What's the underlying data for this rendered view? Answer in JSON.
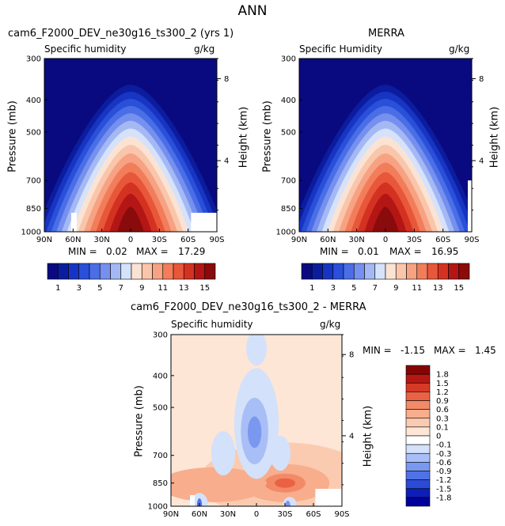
{
  "title": "ANN",
  "colors": {
    "model_obs_scale": [
      "#0a0a80",
      "#0b1d9e",
      "#1735c2",
      "#2a4fd8",
      "#4a6ee6",
      "#7590ee",
      "#a4b9f4",
      "#d6e2fa",
      "#fbe3d4",
      "#f9c6ab",
      "#f6a283",
      "#f27d5b",
      "#e8573a",
      "#d43221",
      "#b41515",
      "#8a0b0b"
    ],
    "diff_scale": [
      "#00009a",
      "#0d1fb8",
      "#2b4ad6",
      "#4f73e6",
      "#7a98ef",
      "#a8bef6",
      "#d3e1fb",
      "#ffffff",
      "#fde6d6",
      "#fbcbb1",
      "#f8ad8c",
      "#f38a67",
      "#ea6243",
      "#d63a26",
      "#b51812",
      "#850505"
    ]
  },
  "chart_data": [
    {
      "type": "heatmap",
      "panel": "model",
      "title": "cam6_F2000_DEV_ne30g16_ts300_2 (yrs 1)",
      "field": "Specific humidity",
      "units": "g/kg",
      "x_ticks": [
        "90N",
        "60N",
        "30N",
        "0",
        "30S",
        "60S",
        "90S"
      ],
      "x_range": [
        90,
        -90
      ],
      "y_ticks": [
        "300",
        "400",
        "500",
        "700",
        "850",
        "1000"
      ],
      "ylabel": "Pressure (mb)",
      "y2label": "Height (km)",
      "y2_ticks": [
        "8",
        "4"
      ],
      "y_scale": "log-pressure",
      "min_label": "MIN =",
      "min_value": "0.02",
      "max_label": "MAX =",
      "max_value": "17.29",
      "colorbar_labels": [
        "1",
        "3",
        "5",
        "7",
        "9",
        "11",
        "13",
        "15"
      ],
      "contour_levels": [
        1,
        2,
        3,
        4,
        5,
        6,
        7,
        8,
        9,
        10,
        11,
        12,
        13,
        14,
        15
      ],
      "peak": {
        "lat": 0,
        "pressure": 1000,
        "value": 17.29
      }
    },
    {
      "type": "heatmap",
      "panel": "obs",
      "title": "MERRA",
      "field": "Specific Humidity",
      "units": "g/kg",
      "x_ticks": [
        "90N",
        "60N",
        "30N",
        "0",
        "30S",
        "60S",
        "90S"
      ],
      "x_range": [
        90,
        -90
      ],
      "y_ticks": [
        "300",
        "400",
        "500",
        "700",
        "850",
        "1000"
      ],
      "ylabel": "Pressure (mb)",
      "y2label": "Height (km)",
      "y2_ticks": [
        "8",
        "4"
      ],
      "y_scale": "log-pressure",
      "min_label": "MIN =",
      "min_value": "0.01",
      "max_label": "MAX =",
      "max_value": "16.95",
      "colorbar_labels": [
        "1",
        "3",
        "5",
        "7",
        "9",
        "11",
        "13",
        "15"
      ],
      "contour_levels": [
        1,
        2,
        3,
        4,
        5,
        6,
        7,
        8,
        9,
        10,
        11,
        12,
        13,
        14,
        15
      ],
      "peak": {
        "lat": 0,
        "pressure": 1000,
        "value": 16.95
      }
    },
    {
      "type": "heatmap",
      "panel": "difference",
      "title": "cam6_F2000_DEV_ne30g16_ts300_2 - MERRA",
      "field": "Specific humidity",
      "units": "g/kg",
      "x_ticks": [
        "90N",
        "60N",
        "30N",
        "0",
        "30S",
        "60S",
        "90S"
      ],
      "x_range": [
        90,
        -90
      ],
      "y_ticks": [
        "300",
        "400",
        "500",
        "700",
        "850",
        "1000"
      ],
      "ylabel": "Pressure (mb)",
      "y2label": "Height (km)",
      "y2_ticks": [
        "8",
        "4"
      ],
      "y_scale": "log-pressure",
      "min_label": "MIN =",
      "min_value": "-1.15",
      "max_label": "MAX =",
      "max_value": "1.45",
      "colorbar_labels": [
        "1.8",
        "1.5",
        "1.2",
        "0.9",
        "0.6",
        "0.3",
        "0.1",
        "0",
        "-0.1",
        "-0.3",
        "-0.6",
        "-0.9",
        "-1.2",
        "-1.5",
        "-1.8"
      ],
      "contour_levels": [
        -1.8,
        -1.5,
        -1.2,
        -0.9,
        -0.6,
        -0.3,
        -0.1,
        0,
        0.1,
        0.3,
        0.6,
        0.9,
        1.2,
        1.5,
        1.8
      ]
    }
  ]
}
